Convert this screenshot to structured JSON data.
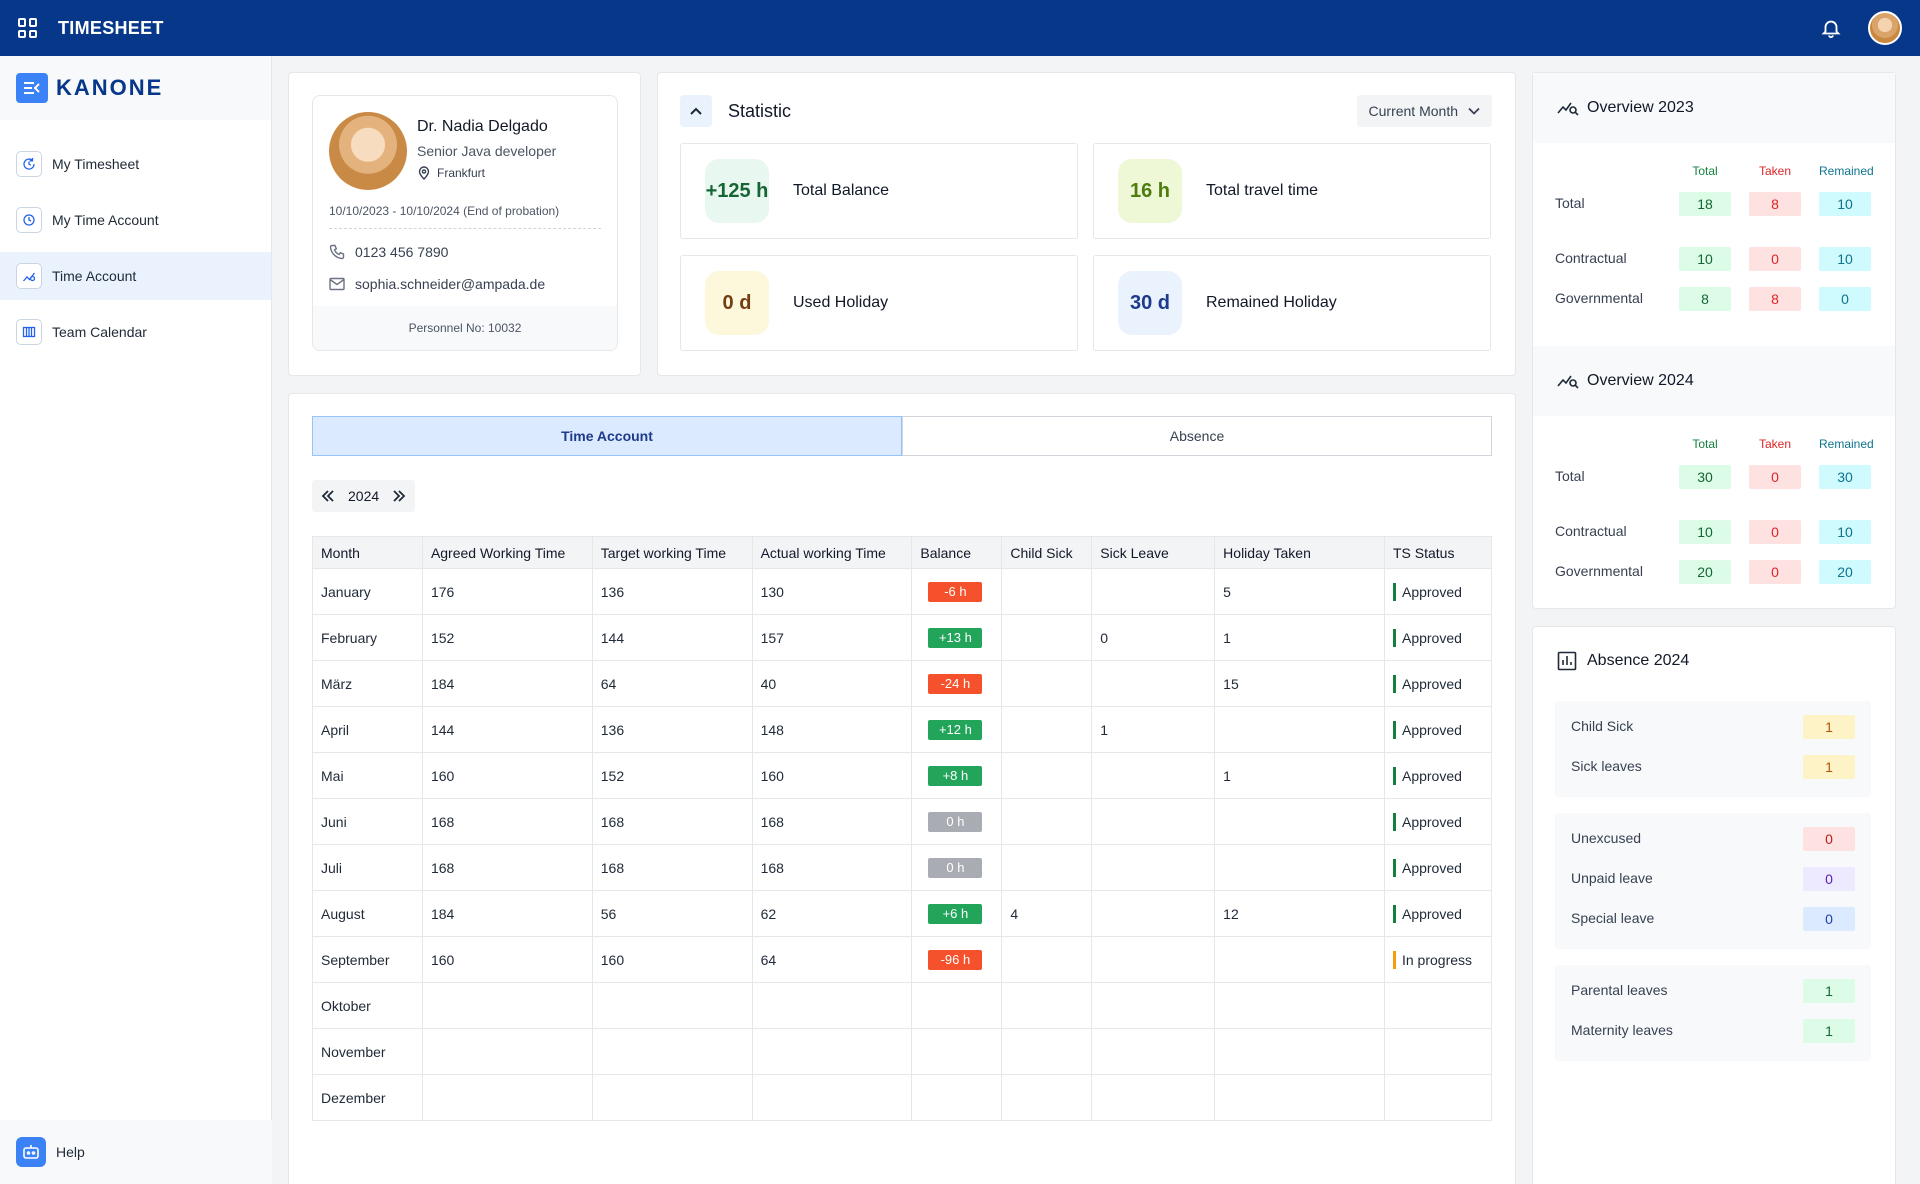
{
  "app": {
    "title": "TIMESHEET",
    "brand": "KANONE"
  },
  "sidebar": {
    "items": [
      {
        "label": "My Timesheet",
        "icon": "clock-refresh-icon",
        "active": false
      },
      {
        "label": "My Time Account",
        "icon": "stopwatch-icon",
        "active": false
      },
      {
        "label": "Time Account",
        "icon": "chart-line-icon",
        "active": true
      },
      {
        "label": "Team Calendar",
        "icon": "calendar-columns-icon",
        "active": false
      }
    ],
    "help": "Help"
  },
  "profile": {
    "name": "Dr. Nadia Delgado",
    "role": "Senior Java developer",
    "city": "Frankfurt",
    "dates": "10/10/2023 - 10/10/2024 (End of probation)",
    "phone": "0123 456 7890",
    "email": "sophia.schneider@ampada.de",
    "personnel": "Personnel No: 10032"
  },
  "statistic": {
    "title": "Statistic",
    "period": "Current Month",
    "cards": [
      {
        "value": "+125 h",
        "label": "Total Balance",
        "bg": "#e8f7ef",
        "fg": "#166534"
      },
      {
        "value": "16 h",
        "label": "Total travel time",
        "bg": "#eef7d6",
        "fg": "#4d7c0f"
      },
      {
        "value": "0 d",
        "label": "Used Holiday",
        "bg": "#fdf8dc",
        "fg": "#713f12"
      },
      {
        "value": "30 d",
        "label": "Remained Holiday",
        "bg": "#eaf2fe",
        "fg": "#1e3a8a"
      }
    ]
  },
  "tabs": [
    {
      "label": "Time Account",
      "active": true
    },
    {
      "label": "Absence",
      "active": false
    }
  ],
  "year": "2024",
  "table": {
    "headers": [
      "Month",
      "Agreed Working Time",
      "Target working Time",
      "Actual working Time",
      "Balance",
      "Child Sick",
      "Sick Leave",
      "Holiday Taken",
      "TS Status"
    ],
    "rows": [
      {
        "month": "January",
        "agreed": "176",
        "target": "136",
        "actual": "130",
        "balance": "-6 h",
        "kind": "neg",
        "child": "",
        "sick": "",
        "holiday": "5",
        "status": "Approved",
        "prog": false
      },
      {
        "month": "February",
        "agreed": "152",
        "target": "144",
        "actual": "157",
        "balance": "+13 h",
        "kind": "pos",
        "child": "",
        "sick": "0",
        "holiday": "1",
        "status": "Approved",
        "prog": false
      },
      {
        "month": "März",
        "agreed": "184",
        "target": "64",
        "actual": "40",
        "balance": "-24 h",
        "kind": "neg",
        "child": "",
        "sick": "",
        "holiday": "15",
        "status": "Approved",
        "prog": false
      },
      {
        "month": "April",
        "agreed": "144",
        "target": "136",
        "actual": "148",
        "balance": "+12 h",
        "kind": "pos",
        "child": "",
        "sick": "1",
        "holiday": "",
        "status": "Approved",
        "prog": false
      },
      {
        "month": "Mai",
        "agreed": "160",
        "target": "152",
        "actual": "160",
        "balance": "+8 h",
        "kind": "pos",
        "child": "",
        "sick": "",
        "holiday": "1",
        "status": "Approved",
        "prog": false
      },
      {
        "month": "Juni",
        "agreed": "168",
        "target": "168",
        "actual": "168",
        "balance": "0 h",
        "kind": "zero",
        "child": "",
        "sick": "",
        "holiday": "",
        "status": "Approved",
        "prog": false
      },
      {
        "month": "Juli",
        "agreed": "168",
        "target": "168",
        "actual": "168",
        "balance": "0 h",
        "kind": "zero",
        "child": "",
        "sick": "",
        "holiday": "",
        "status": "Approved",
        "prog": false
      },
      {
        "month": "August",
        "agreed": "184",
        "target": "56",
        "actual": "62",
        "balance": "+6 h",
        "kind": "pos",
        "child": "4",
        "sick": "",
        "holiday": "12",
        "status": "Approved",
        "prog": false
      },
      {
        "month": "September",
        "agreed": "160",
        "target": "160",
        "actual": "64",
        "balance": "-96 h",
        "kind": "neg",
        "child": "",
        "sick": "",
        "holiday": "",
        "status": "In progress",
        "prog": true
      },
      {
        "month": "Oktober",
        "agreed": "",
        "target": "",
        "actual": "",
        "balance": "",
        "kind": "",
        "child": "",
        "sick": "",
        "holiday": "",
        "status": "",
        "prog": false
      },
      {
        "month": "November",
        "agreed": "",
        "target": "",
        "actual": "",
        "balance": "",
        "kind": "",
        "child": "",
        "sick": "",
        "holiday": "",
        "status": "",
        "prog": false
      },
      {
        "month": "Dezember",
        "agreed": "",
        "target": "",
        "actual": "",
        "balance": "",
        "kind": "",
        "child": "",
        "sick": "",
        "holiday": "",
        "status": "",
        "prog": false
      }
    ]
  },
  "overview2023": {
    "title": "Overview 2023",
    "cols": [
      "Total",
      "Taken",
      "Remained"
    ],
    "rows": [
      {
        "label": "Total",
        "total": "18",
        "taken": "8",
        "remained": "10"
      },
      {
        "label": "Contractual",
        "total": "10",
        "taken": "0",
        "remained": "10"
      },
      {
        "label": "Governmental",
        "total": "8",
        "taken": "8",
        "remained": "0"
      }
    ]
  },
  "overview2024": {
    "title": "Overview 2024",
    "cols": [
      "Total",
      "Taken",
      "Remained"
    ],
    "rows": [
      {
        "label": "Total",
        "total": "30",
        "taken": "0",
        "remained": "30"
      },
      {
        "label": "Contractual",
        "total": "10",
        "taken": "0",
        "remained": "10"
      },
      {
        "label": "Governmental",
        "total": "20",
        "taken": "0",
        "remained": "20"
      }
    ]
  },
  "absence": {
    "title": "Absence 2024",
    "groups": [
      [
        {
          "label": "Child Sick",
          "value": "1",
          "bg": "#fef3c7",
          "fg": "#b45309"
        },
        {
          "label": "Sick leaves",
          "value": "1",
          "bg": "#fef3c7",
          "fg": "#b45309"
        }
      ],
      [
        {
          "label": "Unexcused",
          "value": "0",
          "bg": "#fee2e2",
          "fg": "#b91c1c"
        },
        {
          "label": "Unpaid leave",
          "value": "0",
          "bg": "#ede9fe",
          "fg": "#5b21b6"
        },
        {
          "label": "Special leave",
          "value": "0",
          "bg": "#dbeafe",
          "fg": "#1e40af"
        }
      ],
      [
        {
          "label": "Parental leaves",
          "value": "1",
          "bg": "#dcfce7",
          "fg": "#166534"
        },
        {
          "label": "Maternity leaves",
          "value": "1",
          "bg": "#dcfce7",
          "fg": "#166534"
        }
      ]
    ]
  }
}
